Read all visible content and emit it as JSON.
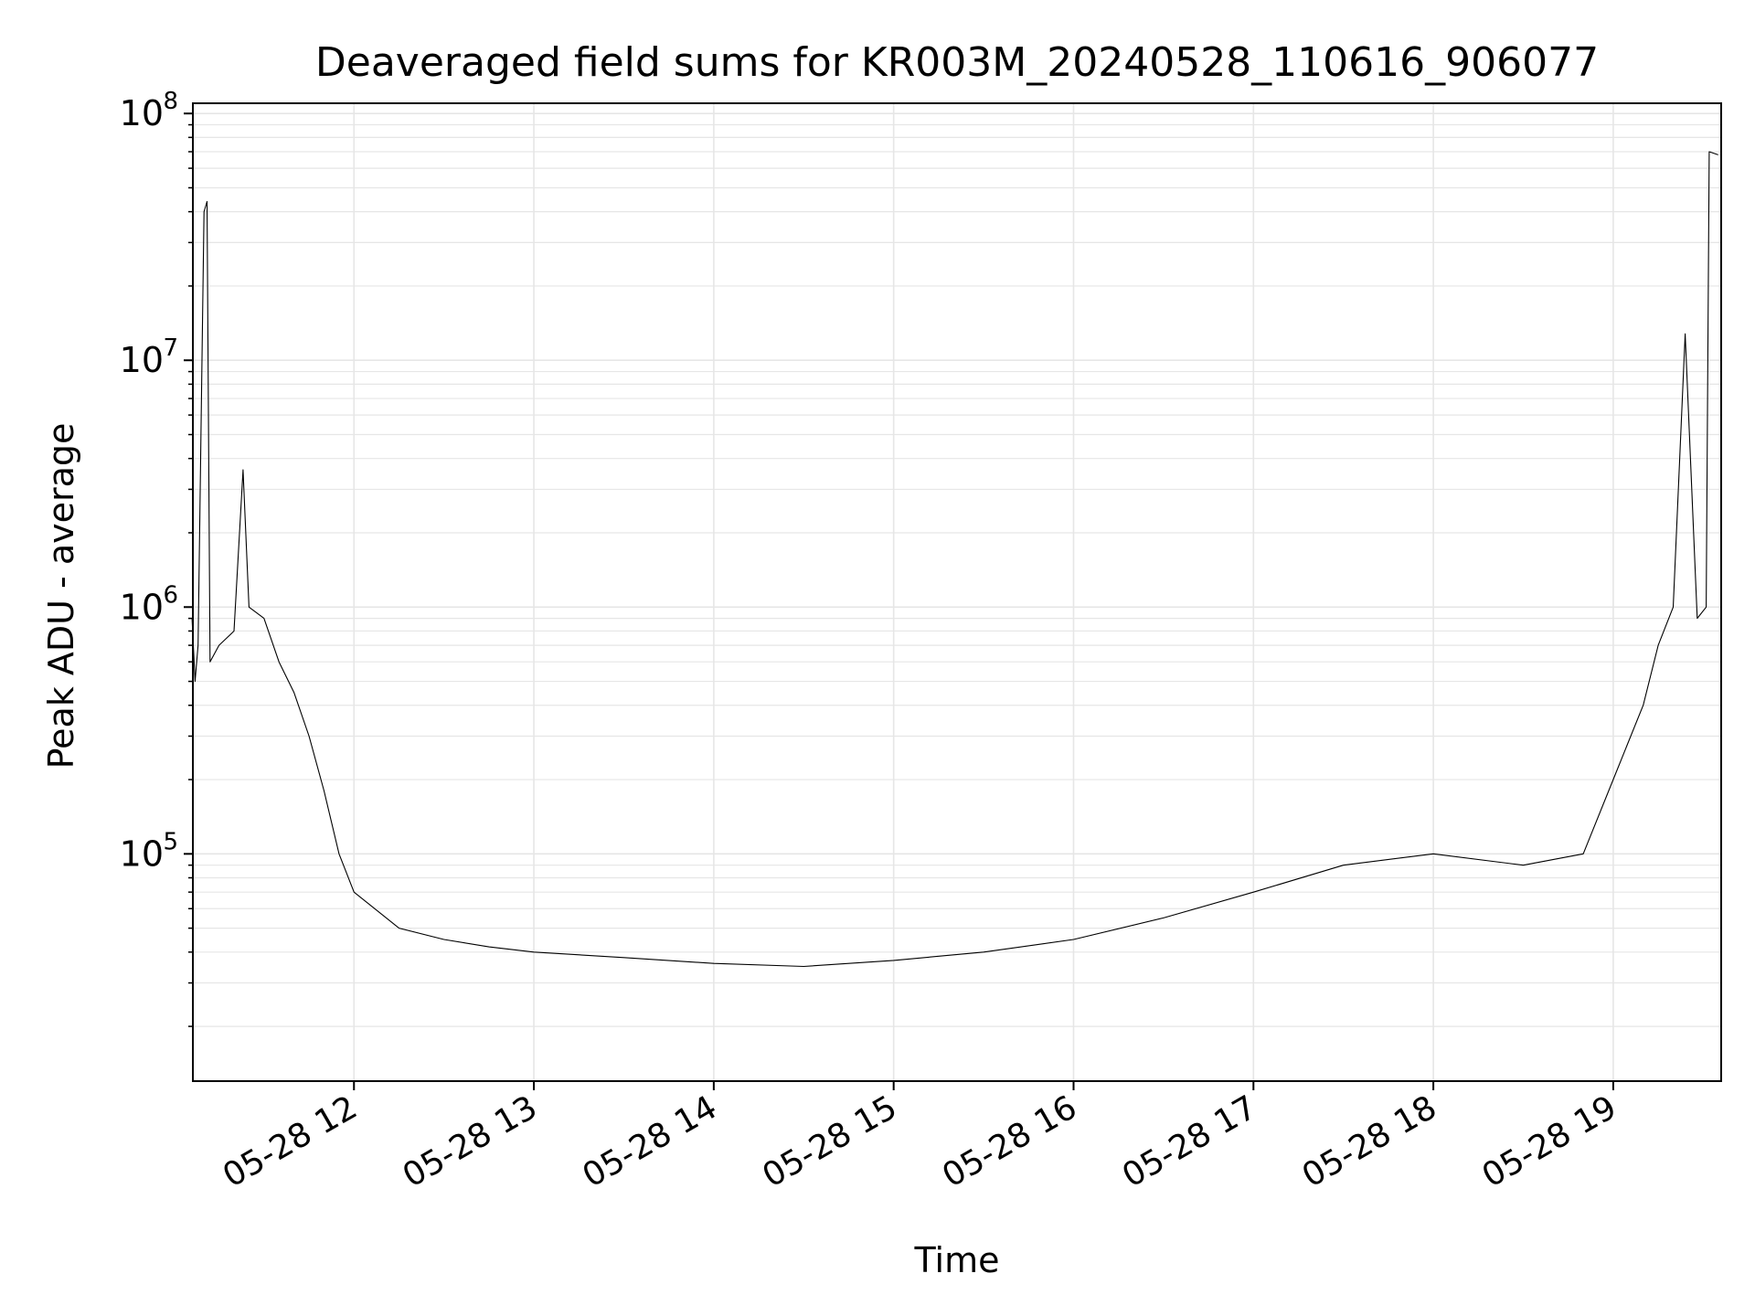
{
  "chart_data": {
    "type": "line",
    "title": "Deaveraged field sums for KR003M_20240528_110616_906077",
    "xlabel": "Time",
    "ylabel": "Peak ADU - average",
    "yscale": "log",
    "ylim": [
      12000,
      110000000
    ],
    "xlim": [
      "2024-05-28 11:06:16",
      "2024-05-28 19:36:00"
    ],
    "x_ticks": [
      {
        "time": "2024-05-28 12:00",
        "label": "05-28 12"
      },
      {
        "time": "2024-05-28 13:00",
        "label": "05-28 13"
      },
      {
        "time": "2024-05-28 14:00",
        "label": "05-28 14"
      },
      {
        "time": "2024-05-28 15:00",
        "label": "05-28 15"
      },
      {
        "time": "2024-05-28 16:00",
        "label": "05-28 16"
      },
      {
        "time": "2024-05-28 17:00",
        "label": "05-28 17"
      },
      {
        "time": "2024-05-28 18:00",
        "label": "05-28 18"
      },
      {
        "time": "2024-05-28 19:00",
        "label": "05-28 19"
      }
    ],
    "y_ticks": [
      {
        "value": 100000,
        "base": "10",
        "exp": "5"
      },
      {
        "value": 1000000,
        "base": "10",
        "exp": "6"
      },
      {
        "value": 10000000,
        "base": "10",
        "exp": "7"
      },
      {
        "value": 100000000,
        "base": "10",
        "exp": "8"
      }
    ],
    "grid": true,
    "line_color": "#000000",
    "grid_color": "#e6e6e6",
    "series": [
      {
        "points": [
          [
            "2024-05-28 11:06",
            900000
          ],
          [
            "2024-05-28 11:07",
            500000
          ],
          [
            "2024-05-28 11:08",
            700000
          ],
          [
            "2024-05-28 11:10",
            40000000
          ],
          [
            "2024-05-28 11:11",
            44000000
          ],
          [
            "2024-05-28 11:12",
            600000
          ],
          [
            "2024-05-28 11:15",
            700000
          ],
          [
            "2024-05-28 11:20",
            800000
          ],
          [
            "2024-05-28 11:23",
            3600000
          ],
          [
            "2024-05-28 11:25",
            1000000
          ],
          [
            "2024-05-28 11:30",
            900000
          ],
          [
            "2024-05-28 11:35",
            600000
          ],
          [
            "2024-05-28 11:40",
            450000
          ],
          [
            "2024-05-28 11:45",
            300000
          ],
          [
            "2024-05-28 11:50",
            180000
          ],
          [
            "2024-05-28 11:55",
            100000
          ],
          [
            "2024-05-28 12:00",
            70000
          ],
          [
            "2024-05-28 12:15",
            50000
          ],
          [
            "2024-05-28 12:30",
            45000
          ],
          [
            "2024-05-28 12:45",
            42000
          ],
          [
            "2024-05-28 13:00",
            40000
          ],
          [
            "2024-05-28 13:30",
            38000
          ],
          [
            "2024-05-28 14:00",
            36000
          ],
          [
            "2024-05-28 14:30",
            35000
          ],
          [
            "2024-05-28 15:00",
            37000
          ],
          [
            "2024-05-28 15:30",
            40000
          ],
          [
            "2024-05-28 16:00",
            45000
          ],
          [
            "2024-05-28 16:30",
            55000
          ],
          [
            "2024-05-28 17:00",
            70000
          ],
          [
            "2024-05-28 17:30",
            90000
          ],
          [
            "2024-05-28 18:00",
            100000
          ],
          [
            "2024-05-28 18:30",
            90000
          ],
          [
            "2024-05-28 18:50",
            100000
          ],
          [
            "2024-05-28 19:00",
            200000
          ],
          [
            "2024-05-28 19:10",
            400000
          ],
          [
            "2024-05-28 19:15",
            700000
          ],
          [
            "2024-05-28 19:20",
            1000000
          ],
          [
            "2024-05-28 19:24",
            12800000
          ],
          [
            "2024-05-28 19:28",
            900000
          ],
          [
            "2024-05-28 19:31",
            1000000
          ],
          [
            "2024-05-28 19:32",
            70000000
          ],
          [
            "2024-05-28 19:35",
            68000000
          ]
        ]
      }
    ]
  }
}
